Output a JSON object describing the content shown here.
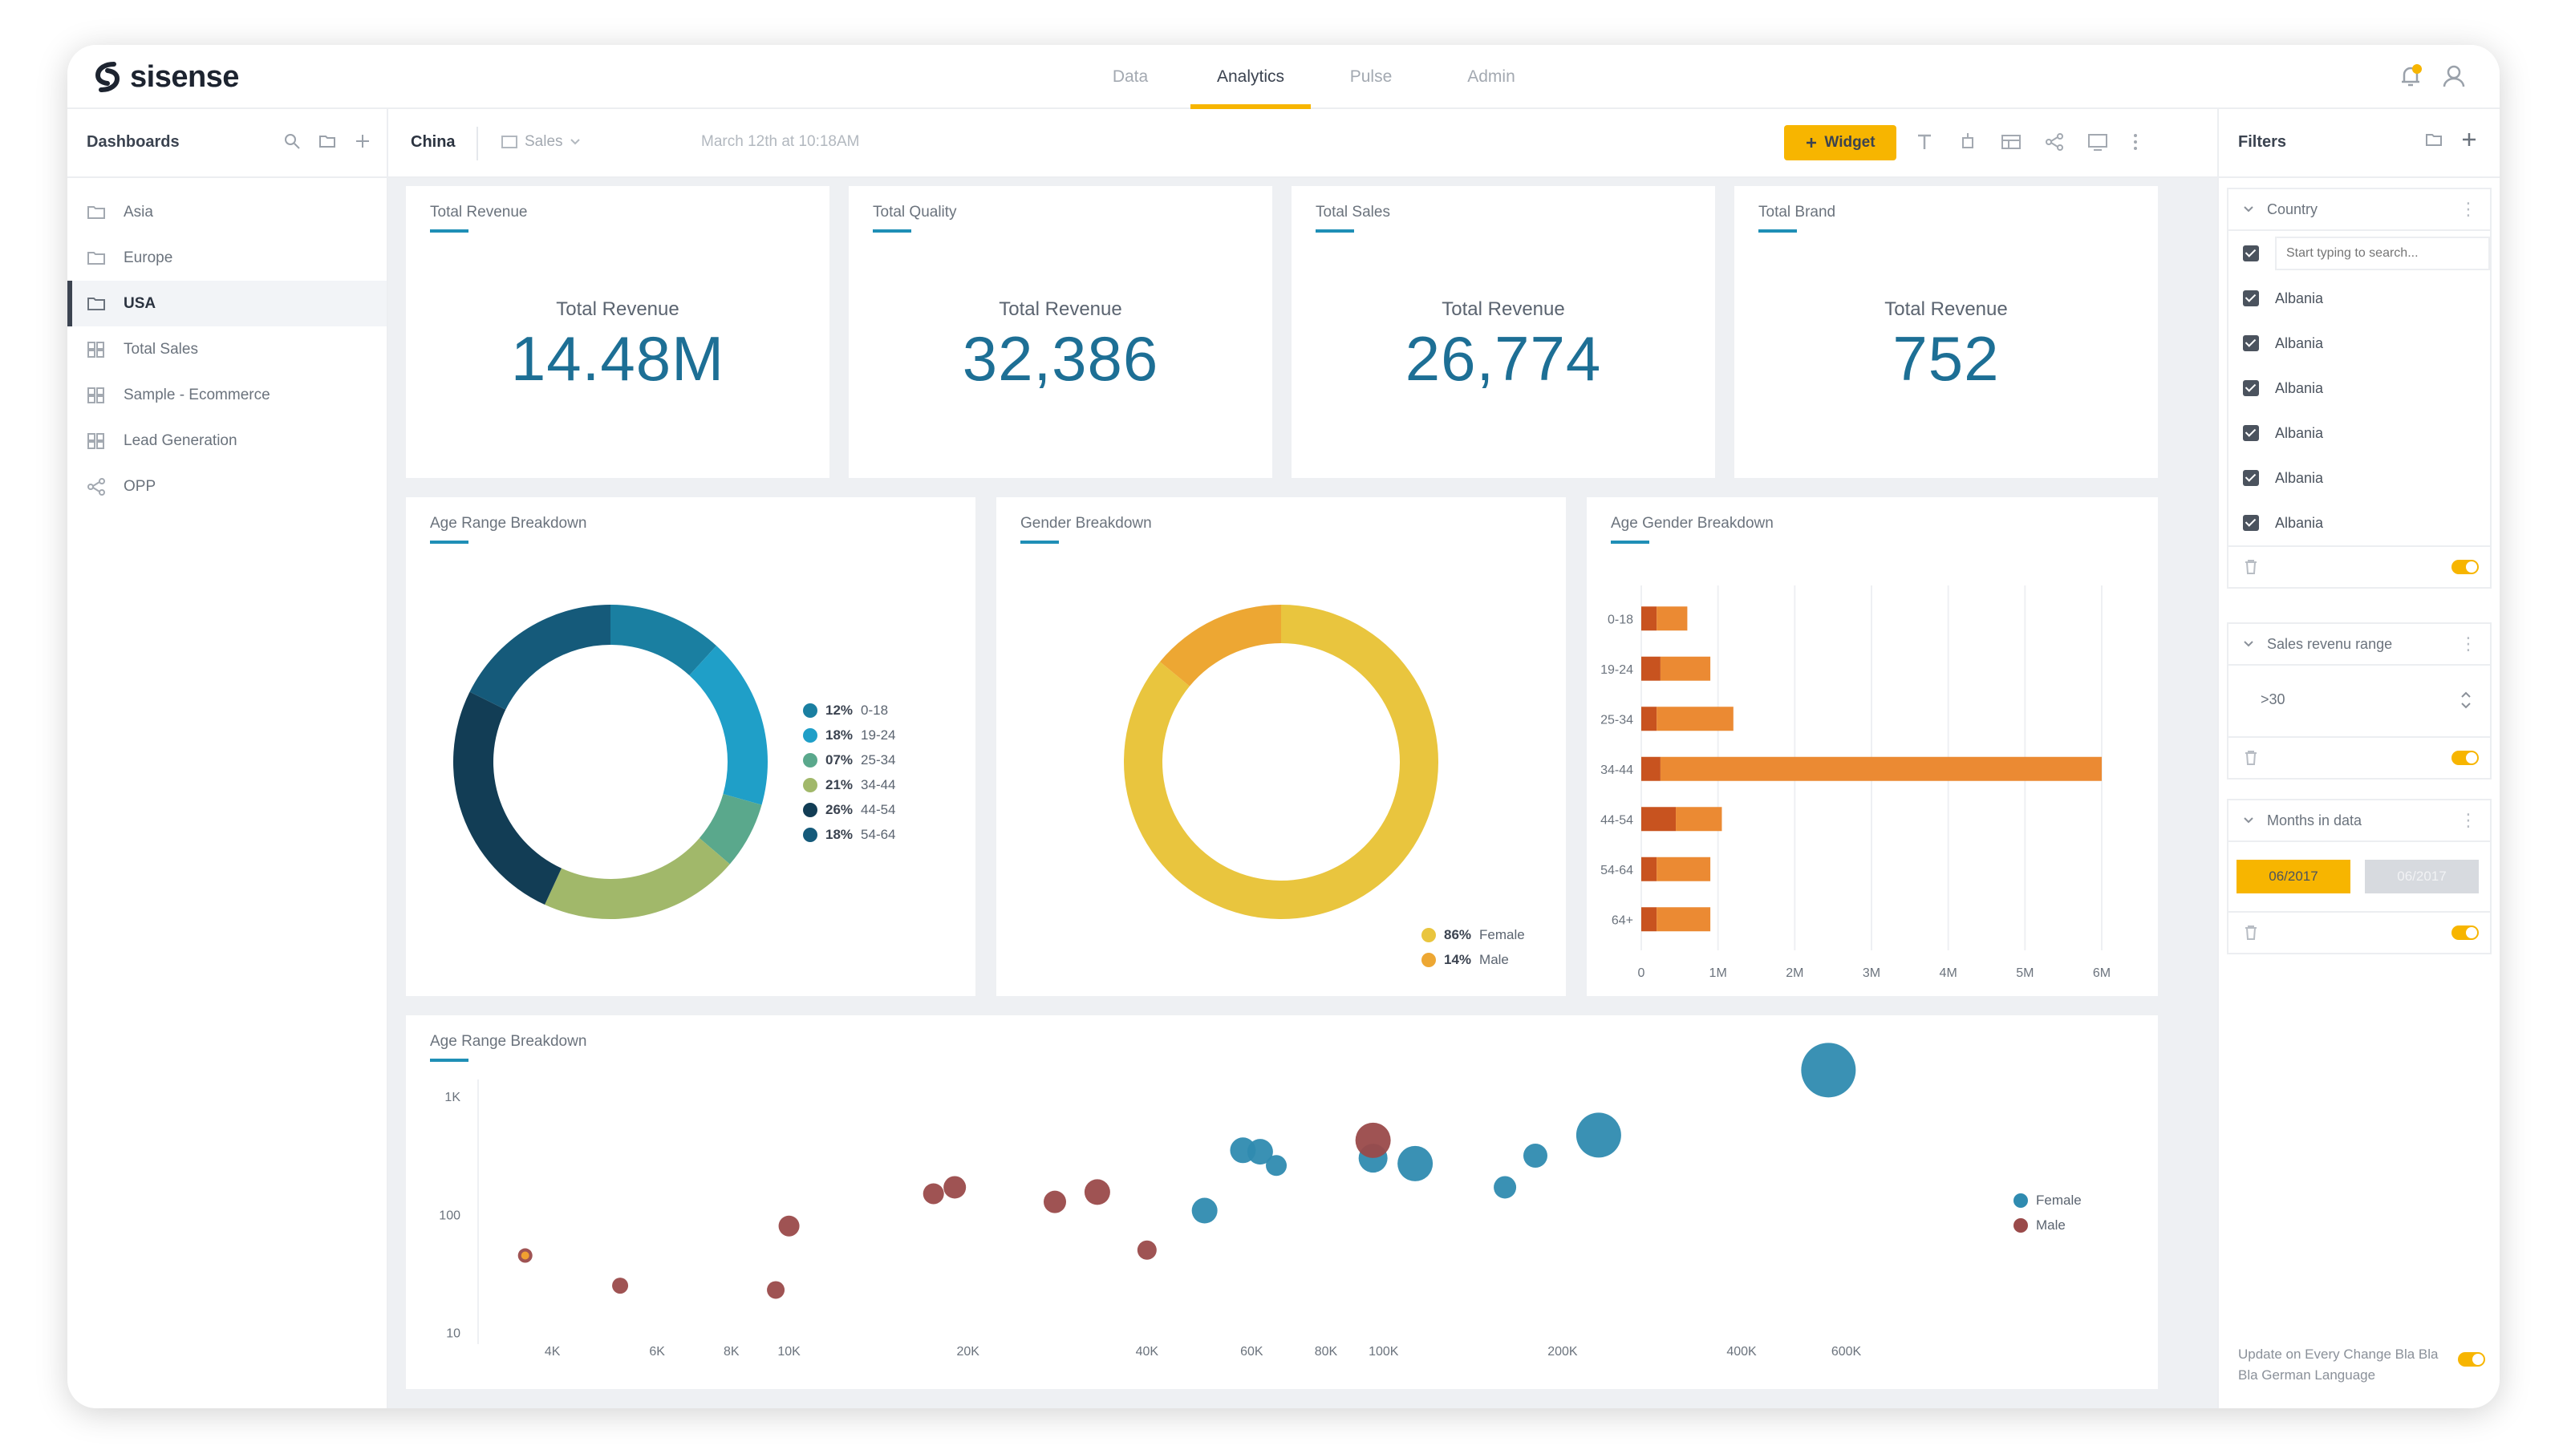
{
  "app": {
    "brand": "sisense"
  },
  "nav": {
    "tabs": [
      "Data",
      "Analytics",
      "Pulse",
      "Admin"
    ],
    "active": "Analytics"
  },
  "sidebar": {
    "title": "Dashboards",
    "items": [
      {
        "label": "Asia",
        "icon": "folder-icon"
      },
      {
        "label": "Europe",
        "icon": "folder-icon"
      },
      {
        "label": "USA",
        "icon": "folder-icon",
        "active": true
      },
      {
        "label": "Total Sales",
        "icon": "dashboard-icon"
      },
      {
        "label": "Sample - Ecommerce",
        "icon": "dashboard-icon"
      },
      {
        "label": "Lead Generation",
        "icon": "dashboard-icon"
      },
      {
        "label": "OPP",
        "icon": "share-icon"
      }
    ]
  },
  "toolbar": {
    "dashboard_title": "China",
    "datasource": "Sales",
    "timestamp": "March 12th at 10:18AM",
    "widget_button": "Widget"
  },
  "kpis": [
    {
      "title": "Total Revenue",
      "label": "Total Revenue",
      "value": "14.48M"
    },
    {
      "title": "Total Quality",
      "label": "Total Revenue",
      "value": "32,386"
    },
    {
      "title": "Total Sales",
      "label": "Total Revenue",
      "value": "26,774"
    },
    {
      "title": "Total Brand",
      "label": "Total Revenue",
      "value": "752"
    }
  ],
  "age_donut": {
    "title": "Age Range Breakdown",
    "legend": [
      {
        "pct": "12%",
        "label": "0-18",
        "color": "#1a7fa1"
      },
      {
        "pct": "18%",
        "label": "19-24",
        "color": "#1f9fc8"
      },
      {
        "pct": "07%",
        "label": "25-34",
        "color": "#5aa88c"
      },
      {
        "pct": "21%",
        "label": "34-44",
        "color": "#a1b86a"
      },
      {
        "pct": "26%",
        "label": "44-54",
        "color": "#123d55"
      },
      {
        "pct": "18%",
        "label": "54-64",
        "color": "#155a7a"
      }
    ]
  },
  "gender_donut": {
    "title": "Gender Breakdown",
    "legend": [
      {
        "pct": "86%",
        "label": "Female",
        "color": "#e9c53e"
      },
      {
        "pct": "14%",
        "label": "Male",
        "color": "#eda733"
      }
    ]
  },
  "bar_panel": {
    "title": "Age Gender Breakdown"
  },
  "scatter_panel": {
    "title": "Age Range Breakdown",
    "legend": [
      {
        "label": "Female",
        "color": "#2f8bb0"
      },
      {
        "label": "Male",
        "color": "#9a4a4a"
      }
    ]
  },
  "chart_data": [
    {
      "type": "pie",
      "title": "Age Range Breakdown",
      "categories": [
        "0-18",
        "19-24",
        "25-34",
        "34-44",
        "44-54",
        "54-64"
      ],
      "values": [
        12,
        18,
        7,
        21,
        26,
        18
      ],
      "colors": [
        "#1a7fa1",
        "#1f9fc8",
        "#5aa88c",
        "#a1b86a",
        "#123d55",
        "#155a7a"
      ]
    },
    {
      "type": "pie",
      "title": "Gender Breakdown",
      "categories": [
        "Female",
        "Male"
      ],
      "values": [
        86,
        14
      ],
      "colors": [
        "#e9c53e",
        "#eda733"
      ]
    },
    {
      "type": "bar",
      "title": "Age Gender Breakdown",
      "orientation": "horizontal",
      "categories": [
        "0-18",
        "19-24",
        "25-34",
        "34-44",
        "44-54",
        "54-64",
        "64+"
      ],
      "series": [
        {
          "name": "Male",
          "color": "#c8531f",
          "values": [
            0.2,
            0.25,
            0.2,
            0.25,
            0.45,
            0.2,
            0.2
          ]
        },
        {
          "name": "Female",
          "color": "#eb8a33",
          "values": [
            0.4,
            0.65,
            1.0,
            5.75,
            0.6,
            0.7,
            0.7
          ]
        }
      ],
      "x_ticks": [
        "0",
        "1M",
        "2M",
        "3M",
        "4M",
        "5M",
        "6M"
      ],
      "xlim": [
        0,
        6
      ]
    },
    {
      "type": "scatter",
      "title": "Age Range Breakdown",
      "x_scale": "log",
      "y_scale": "log",
      "x_ticks": [
        {
          "v": 4000,
          "label": "4K"
        },
        {
          "v": 6000,
          "label": "6K"
        },
        {
          "v": 8000,
          "label": "8K"
        },
        {
          "v": 10000,
          "label": "10K"
        },
        {
          "v": 20000,
          "label": "20K"
        },
        {
          "v": 40000,
          "label": "40K"
        },
        {
          "v": 60000,
          "label": "60K"
        },
        {
          "v": 80000,
          "label": "80K"
        },
        {
          "v": 100000,
          "label": "100K"
        },
        {
          "v": 200000,
          "label": "200K"
        },
        {
          "v": 400000,
          "label": "400K"
        },
        {
          "v": 600000,
          "label": "600K"
        }
      ],
      "y_ticks": [
        {
          "v": 10,
          "label": "10"
        },
        {
          "v": 100,
          "label": "100"
        },
        {
          "v": 1000,
          "label": "1K"
        }
      ],
      "xlim": [
        3000,
        1000000
      ],
      "ylim": [
        8,
        2600
      ],
      "series": [
        {
          "name": "Female",
          "color": "#2f8bb0",
          "points": [
            {
              "x": 50000,
              "y": 108,
              "s": 16
            },
            {
              "x": 58000,
              "y": 350,
              "s": 16
            },
            {
              "x": 62000,
              "y": 340,
              "s": 16
            },
            {
              "x": 66000,
              "y": 260,
              "s": 13
            },
            {
              "x": 96000,
              "y": 300,
              "s": 18
            },
            {
              "x": 113000,
              "y": 270,
              "s": 22
            },
            {
              "x": 160000,
              "y": 170,
              "s": 14
            },
            {
              "x": 180000,
              "y": 315,
              "s": 15
            },
            {
              "x": 230000,
              "y": 470,
              "s": 28
            },
            {
              "x": 560000,
              "y": 1670,
              "s": 34
            }
          ]
        },
        {
          "name": "Male",
          "color": "#9a4a4a",
          "points": [
            {
              "x": 3600,
              "y": 45,
              "s": 9
            },
            {
              "x": 5200,
              "y": 25,
              "s": 10
            },
            {
              "x": 9500,
              "y": 23,
              "s": 11
            },
            {
              "x": 10000,
              "y": 80,
              "s": 13
            },
            {
              "x": 17500,
              "y": 150,
              "s": 13
            },
            {
              "x": 19000,
              "y": 170,
              "s": 14
            },
            {
              "x": 28000,
              "y": 128,
              "s": 14
            },
            {
              "x": 33000,
              "y": 155,
              "s": 16
            },
            {
              "x": 40000,
              "y": 50,
              "s": 12
            },
            {
              "x": 96000,
              "y": 425,
              "s": 22
            }
          ]
        }
      ]
    }
  ],
  "filters": {
    "title": "Filters",
    "country": {
      "title": "Country",
      "search_placeholder": "Start typing to search...",
      "items": [
        "Albania",
        "Albania",
        "Albania",
        "Albania",
        "Albania",
        "Albania"
      ]
    },
    "sales_range": {
      "title": "Sales revenu range",
      "value": ">30"
    },
    "months": {
      "title": "Months in data",
      "from": "06/2017",
      "to": "06/2017"
    },
    "footer_text": "Update on Every Change Bla Bla Bla German Language"
  },
  "colors": {
    "accent": "#f7b500",
    "kpi": "#1d6f95",
    "title_underline": "#1f8fb6"
  }
}
